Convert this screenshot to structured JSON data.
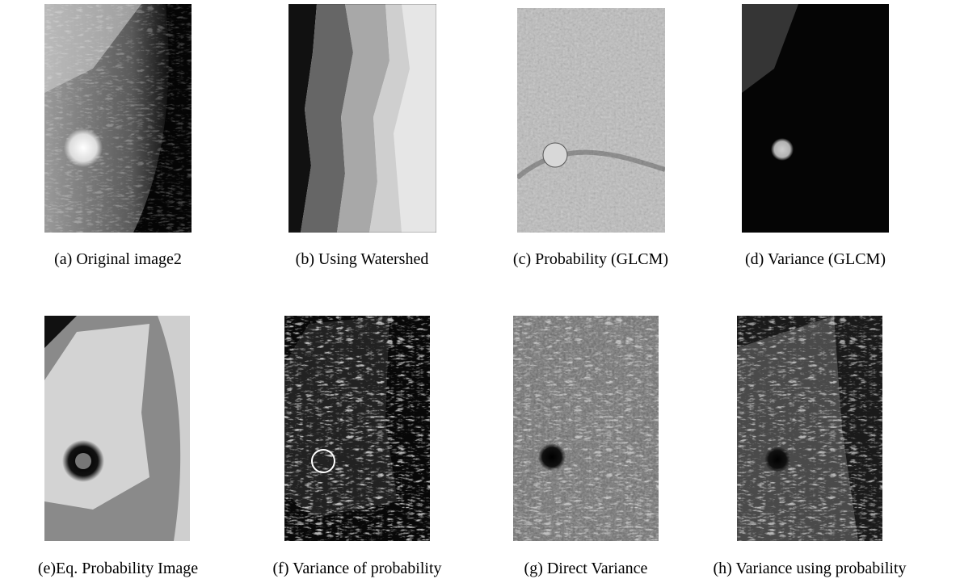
{
  "figure": {
    "panels": [
      {
        "caption": "(a) Original image2"
      },
      {
        "caption": "(b) Using Watershed"
      },
      {
        "caption": "(c) Probability (GLCM)"
      },
      {
        "caption": "(d) Variance (GLCM)"
      },
      {
        "caption": "(e)Eq. Probability Image"
      },
      {
        "caption": "(f) Variance of probability"
      },
      {
        "caption": "(g) Direct Variance"
      },
      {
        "caption": "(h) Variance using probability"
      }
    ]
  }
}
